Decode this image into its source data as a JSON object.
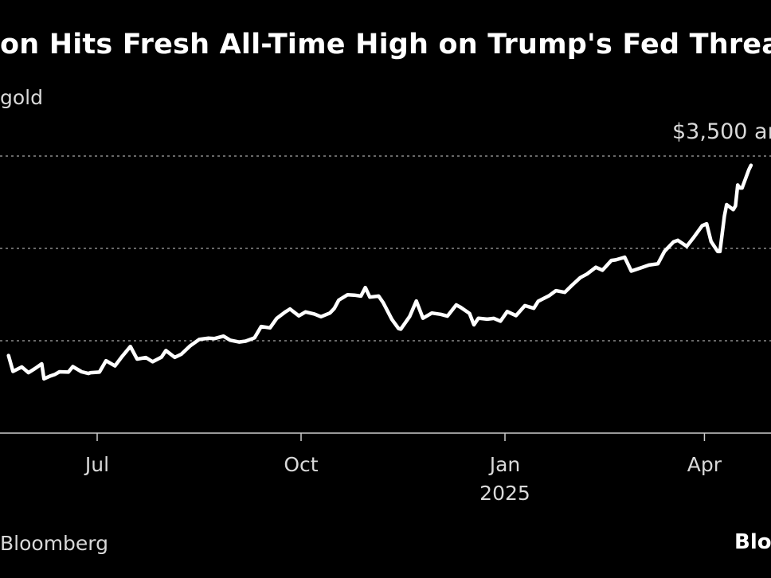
{
  "header": {
    "title": "on Hits Fresh All-Time High on Trump's Fed Threat",
    "subtitle": "gold"
  },
  "footer": {
    "source": "Bloomberg",
    "logo_text": "Bloo"
  },
  "chart_data": {
    "type": "line",
    "title": "on Hits Fresh All-Time High on Trump's Fed Threat",
    "subtitle": "gold",
    "annotation": "$3,500 ar",
    "ylim": [
      2000,
      3600
    ],
    "y_gridlines": [
      2500,
      3000,
      3500
    ],
    "grid": true,
    "x_ticks": [
      {
        "label": "Jul",
        "date": "2024-07-01"
      },
      {
        "label": "Oct",
        "date": "2024-10-01"
      },
      {
        "label": "Jan",
        "sublabel": "2025",
        "date": "2025-01-01"
      },
      {
        "label": "Apr",
        "date": "2025-04-01"
      }
    ],
    "series": [
      {
        "values": [
          [
            "2024-05-22",
            2420
          ],
          [
            "2024-05-24",
            2334
          ],
          [
            "2024-05-28",
            2358
          ],
          [
            "2024-05-31",
            2327
          ],
          [
            "2024-06-03",
            2350
          ],
          [
            "2024-06-06",
            2375
          ],
          [
            "2024-06-07",
            2294
          ],
          [
            "2024-06-10",
            2310
          ],
          [
            "2024-06-12",
            2318
          ],
          [
            "2024-06-14",
            2332
          ],
          [
            "2024-06-18",
            2330
          ],
          [
            "2024-06-20",
            2360
          ],
          [
            "2024-06-24",
            2332
          ],
          [
            "2024-06-27",
            2323
          ],
          [
            "2024-06-28",
            2327
          ],
          [
            "2024-07-02",
            2330
          ],
          [
            "2024-07-05",
            2392
          ],
          [
            "2024-07-09",
            2364
          ],
          [
            "2024-07-12",
            2411
          ],
          [
            "2024-07-16",
            2469
          ],
          [
            "2024-07-19",
            2401
          ],
          [
            "2024-07-23",
            2409
          ],
          [
            "2024-07-26",
            2386
          ],
          [
            "2024-07-30",
            2411
          ],
          [
            "2024-08-01",
            2447
          ],
          [
            "2024-08-05",
            2410
          ],
          [
            "2024-08-08",
            2427
          ],
          [
            "2024-08-12",
            2473
          ],
          [
            "2024-08-16",
            2507
          ],
          [
            "2024-08-20",
            2514
          ],
          [
            "2024-08-23",
            2512
          ],
          [
            "2024-08-27",
            2525
          ],
          [
            "2024-08-30",
            2503
          ],
          [
            "2024-09-03",
            2493
          ],
          [
            "2024-09-06",
            2498
          ],
          [
            "2024-09-10",
            2516
          ],
          [
            "2024-09-13",
            2577
          ],
          [
            "2024-09-17",
            2570
          ],
          [
            "2024-09-20",
            2621
          ],
          [
            "2024-09-24",
            2657
          ],
          [
            "2024-09-26",
            2672
          ],
          [
            "2024-09-30",
            2635
          ],
          [
            "2024-10-03",
            2656
          ],
          [
            "2024-10-07",
            2645
          ],
          [
            "2024-10-10",
            2630
          ],
          [
            "2024-10-14",
            2650
          ],
          [
            "2024-10-16",
            2675
          ],
          [
            "2024-10-18",
            2720
          ],
          [
            "2024-10-22",
            2749
          ],
          [
            "2024-10-25",
            2747
          ],
          [
            "2024-10-28",
            2742
          ],
          [
            "2024-10-30",
            2788
          ],
          [
            "2024-11-01",
            2736
          ],
          [
            "2024-11-05",
            2742
          ],
          [
            "2024-11-07",
            2707
          ],
          [
            "2024-11-11",
            2615
          ],
          [
            "2024-11-14",
            2566
          ],
          [
            "2024-11-15",
            2563
          ],
          [
            "2024-11-19",
            2631
          ],
          [
            "2024-11-22",
            2715
          ],
          [
            "2024-11-25",
            2622
          ],
          [
            "2024-11-29",
            2650
          ],
          [
            "2024-12-03",
            2643
          ],
          [
            "2024-12-06",
            2633
          ],
          [
            "2024-12-10",
            2694
          ],
          [
            "2024-12-12",
            2681
          ],
          [
            "2024-12-16",
            2648
          ],
          [
            "2024-12-18",
            2586
          ],
          [
            "2024-12-20",
            2622
          ],
          [
            "2024-12-24",
            2617
          ],
          [
            "2024-12-27",
            2621
          ],
          [
            "2024-12-30",
            2606
          ],
          [
            "2025-01-02",
            2658
          ],
          [
            "2025-01-06",
            2636
          ],
          [
            "2025-01-10",
            2690
          ],
          [
            "2025-01-14",
            2676
          ],
          [
            "2025-01-16",
            2714
          ],
          [
            "2025-01-21",
            2745
          ],
          [
            "2025-01-24",
            2771
          ],
          [
            "2025-01-28",
            2762
          ],
          [
            "2025-01-31",
            2798
          ],
          [
            "2025-02-04",
            2842
          ],
          [
            "2025-02-07",
            2861
          ],
          [
            "2025-02-11",
            2898
          ],
          [
            "2025-02-14",
            2882
          ],
          [
            "2025-02-18",
            2935
          ],
          [
            "2025-02-20",
            2938
          ],
          [
            "2025-02-24",
            2952
          ],
          [
            "2025-02-27",
            2877
          ],
          [
            "2025-03-03",
            2893
          ],
          [
            "2025-03-07",
            2910
          ],
          [
            "2025-03-11",
            2917
          ],
          [
            "2025-03-14",
            2984
          ],
          [
            "2025-03-18",
            3035
          ],
          [
            "2025-03-20",
            3044
          ],
          [
            "2025-03-24",
            3011
          ],
          [
            "2025-03-27",
            3057
          ],
          [
            "2025-03-31",
            3123
          ],
          [
            "2025-04-02",
            3133
          ],
          [
            "2025-04-04",
            3037
          ],
          [
            "2025-04-07",
            2983
          ],
          [
            "2025-04-08",
            2983
          ],
          [
            "2025-04-10",
            3175
          ],
          [
            "2025-04-11",
            3237
          ],
          [
            "2025-04-14",
            3210
          ],
          [
            "2025-04-15",
            3230
          ],
          [
            "2025-04-16",
            3343
          ],
          [
            "2025-04-17",
            3327
          ],
          [
            "2025-04-18",
            3327
          ],
          [
            "2025-04-21",
            3425
          ],
          [
            "2025-04-22",
            3450
          ]
        ]
      }
    ]
  }
}
